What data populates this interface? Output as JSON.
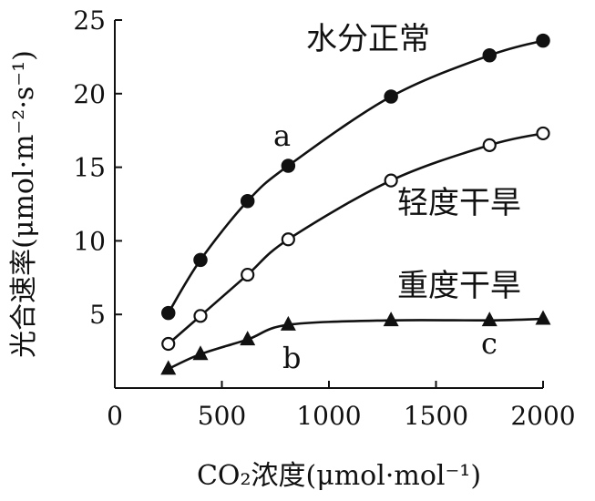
{
  "chart_data": {
    "type": "line",
    "title": "",
    "xlabel": "CO₂浓度(μmol·mol⁻¹)",
    "ylabel": "光合速率(μmol·m⁻²·s⁻¹)",
    "xlim": [
      0,
      2000
    ],
    "ylim": [
      0,
      25
    ],
    "xticks": [
      "0",
      "500",
      "1000",
      "1500",
      "2000"
    ],
    "yticks": [
      "5",
      "10",
      "15",
      "20",
      "25"
    ],
    "grid": false,
    "series": [
      {
        "name": "水分正常",
        "marker": "filled-circle",
        "x": [
          250,
          400,
          620,
          810,
          1290,
          1750,
          2000
        ],
        "y": [
          5.1,
          8.7,
          12.7,
          15.1,
          19.8,
          22.6,
          23.6
        ]
      },
      {
        "name": "轻度干旱",
        "marker": "open-circle",
        "x": [
          250,
          400,
          620,
          810,
          1290,
          1750,
          2000
        ],
        "y": [
          3.0,
          4.9,
          7.7,
          10.1,
          14.1,
          16.5,
          17.3
        ]
      },
      {
        "name": "重度干旱",
        "marker": "filled-triangle",
        "x": [
          250,
          400,
          620,
          810,
          1290,
          1750,
          2000
        ],
        "y": [
          1.3,
          2.3,
          3.3,
          4.3,
          4.6,
          4.6,
          4.7
        ]
      }
    ],
    "annotations": [
      "a",
      "b",
      "c"
    ]
  }
}
